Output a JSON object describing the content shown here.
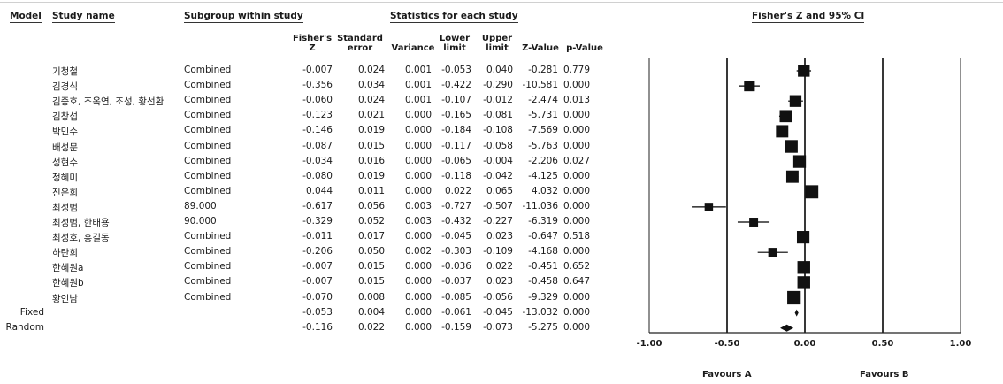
{
  "headers": {
    "model": "Model",
    "study_name": "Study name",
    "subgroup": "Subgroup within study",
    "stats": "Statistics for each study",
    "plot": "Fisher's Z and 95% CI"
  },
  "columns": {
    "z": [
      "Fisher's",
      "Z"
    ],
    "se": [
      "Standard",
      "error"
    ],
    "variance": [
      "Variance"
    ],
    "lower": [
      "Lower",
      "limit"
    ],
    "upper": [
      "Upper",
      "limit"
    ],
    "zvalue": [
      "Z-Value"
    ],
    "pvalue": [
      "p-Value"
    ]
  },
  "rows": [
    {
      "name": "기청철",
      "subgroup": "Combined",
      "z": "-0.007",
      "se": "0.024",
      "var": "0.001",
      "lower": "-0.053",
      "upper": "0.040",
      "zval": "-0.281",
      "p": "0.779"
    },
    {
      "name": "김경식",
      "subgroup": "Combined",
      "z": "-0.356",
      "se": "0.034",
      "var": "0.001",
      "lower": "-0.422",
      "upper": "-0.290",
      "zval": "-10.581",
      "p": "0.000"
    },
    {
      "name": "김종호, 조옥연, 조성, 황선환",
      "subgroup": "Combined",
      "z": "-0.060",
      "se": "0.024",
      "var": "0.001",
      "lower": "-0.107",
      "upper": "-0.012",
      "zval": "-2.474",
      "p": "0.013"
    },
    {
      "name": "김창섭",
      "subgroup": "Combined",
      "z": "-0.123",
      "se": "0.021",
      "var": "0.000",
      "lower": "-0.165",
      "upper": "-0.081",
      "zval": "-5.731",
      "p": "0.000"
    },
    {
      "name": "박민수",
      "subgroup": "Combined",
      "z": "-0.146",
      "se": "0.019",
      "var": "0.000",
      "lower": "-0.184",
      "upper": "-0.108",
      "zval": "-7.569",
      "p": "0.000"
    },
    {
      "name": "배성문",
      "subgroup": "Combined",
      "z": "-0.087",
      "se": "0.015",
      "var": "0.000",
      "lower": "-0.117",
      "upper": "-0.058",
      "zval": "-5.763",
      "p": "0.000"
    },
    {
      "name": "성현수",
      "subgroup": "Combined",
      "z": "-0.034",
      "se": "0.016",
      "var": "0.000",
      "lower": "-0.065",
      "upper": "-0.004",
      "zval": "-2.206",
      "p": "0.027"
    },
    {
      "name": "정혜미",
      "subgroup": "Combined",
      "z": "-0.080",
      "se": "0.019",
      "var": "0.000",
      "lower": "-0.118",
      "upper": "-0.042",
      "zval": "-4.125",
      "p": "0.000"
    },
    {
      "name": "진은희",
      "subgroup": "Combined",
      "z": "0.044",
      "se": "0.011",
      "var": "0.000",
      "lower": "0.022",
      "upper": "0.065",
      "zval": "4.032",
      "p": "0.000"
    },
    {
      "name": "최성범",
      "subgroup": "89.000",
      "z": "-0.617",
      "se": "0.056",
      "var": "0.003",
      "lower": "-0.727",
      "upper": "-0.507",
      "zval": "-11.036",
      "p": "0.000"
    },
    {
      "name": "최성범, 한태용",
      "subgroup": "90.000",
      "z": "-0.329",
      "se": "0.052",
      "var": "0.003",
      "lower": "-0.432",
      "upper": "-0.227",
      "zval": "-6.319",
      "p": "0.000"
    },
    {
      "name": "최성호, 홍길동",
      "subgroup": "Combined",
      "z": "-0.011",
      "se": "0.017",
      "var": "0.000",
      "lower": "-0.045",
      "upper": "0.023",
      "zval": "-0.647",
      "p": "0.518"
    },
    {
      "name": "하란희",
      "subgroup": "Combined",
      "z": "-0.206",
      "se": "0.050",
      "var": "0.002",
      "lower": "-0.303",
      "upper": "-0.109",
      "zval": "-4.168",
      "p": "0.000"
    },
    {
      "name": "한혜원a",
      "subgroup": "Combined",
      "z": "-0.007",
      "se": "0.015",
      "var": "0.000",
      "lower": "-0.036",
      "upper": "0.022",
      "zval": "-0.451",
      "p": "0.652"
    },
    {
      "name": "한혜원b",
      "subgroup": "Combined",
      "z": "-0.007",
      "se": "0.015",
      "var": "0.000",
      "lower": "-0.037",
      "upper": "0.023",
      "zval": "-0.458",
      "p": "0.647"
    },
    {
      "name": "황인남",
      "subgroup": "Combined",
      "z": "-0.070",
      "se": "0.008",
      "var": "0.000",
      "lower": "-0.085",
      "upper": "-0.056",
      "zval": "-9.329",
      "p": "0.000"
    }
  ],
  "summary": [
    {
      "model": "Fixed",
      "z": "-0.053",
      "se": "0.004",
      "var": "0.000",
      "lower": "-0.061",
      "upper": "-0.045",
      "zval": "-13.032",
      "p": "0.000"
    },
    {
      "model": "Random",
      "z": "-0.116",
      "se": "0.022",
      "var": "0.000",
      "lower": "-0.159",
      "upper": "-0.073",
      "zval": "-5.275",
      "p": "0.000"
    }
  ],
  "chart_data": {
    "type": "forest",
    "title": "Fisher's Z and 95% CI",
    "xlim": [
      -1.0,
      1.0
    ],
    "xticks": [
      -1.0,
      -0.5,
      0.0,
      0.5,
      1.0
    ],
    "xtick_labels": [
      "-1.00",
      "-0.50",
      "0.00",
      "0.50",
      "1.00"
    ],
    "favours_left": "Favours A",
    "favours_right": "Favours B",
    "studies": [
      {
        "label": "기청철",
        "z": -0.007,
        "lower": -0.053,
        "upper": 0.04
      },
      {
        "label": "김경식",
        "z": -0.356,
        "lower": -0.422,
        "upper": -0.29
      },
      {
        "label": "김종호, 조옥연, 조성, 황선환",
        "z": -0.06,
        "lower": -0.107,
        "upper": -0.012
      },
      {
        "label": "김창섭",
        "z": -0.123,
        "lower": -0.165,
        "upper": -0.081
      },
      {
        "label": "박민수",
        "z": -0.146,
        "lower": -0.184,
        "upper": -0.108
      },
      {
        "label": "배성문",
        "z": -0.087,
        "lower": -0.117,
        "upper": -0.058
      },
      {
        "label": "성현수",
        "z": -0.034,
        "lower": -0.065,
        "upper": -0.004
      },
      {
        "label": "정혜미",
        "z": -0.08,
        "lower": -0.118,
        "upper": -0.042
      },
      {
        "label": "진은희",
        "z": 0.044,
        "lower": 0.022,
        "upper": 0.065
      },
      {
        "label": "최성범",
        "z": -0.617,
        "lower": -0.727,
        "upper": -0.507
      },
      {
        "label": "최성범, 한태용",
        "z": -0.329,
        "lower": -0.432,
        "upper": -0.227
      },
      {
        "label": "최성호, 홍길동",
        "z": -0.011,
        "lower": -0.045,
        "upper": 0.023
      },
      {
        "label": "하란희",
        "z": -0.206,
        "lower": -0.303,
        "upper": -0.109
      },
      {
        "label": "한혜원a",
        "z": -0.007,
        "lower": -0.036,
        "upper": 0.022
      },
      {
        "label": "한혜원b",
        "z": -0.007,
        "lower": -0.037,
        "upper": 0.023
      },
      {
        "label": "황인남",
        "z": -0.07,
        "lower": -0.085,
        "upper": -0.056
      }
    ],
    "pooled": [
      {
        "label": "Fixed",
        "z": -0.053,
        "lower": -0.061,
        "upper": -0.045
      },
      {
        "label": "Random",
        "z": -0.116,
        "lower": -0.159,
        "upper": -0.073
      }
    ]
  }
}
